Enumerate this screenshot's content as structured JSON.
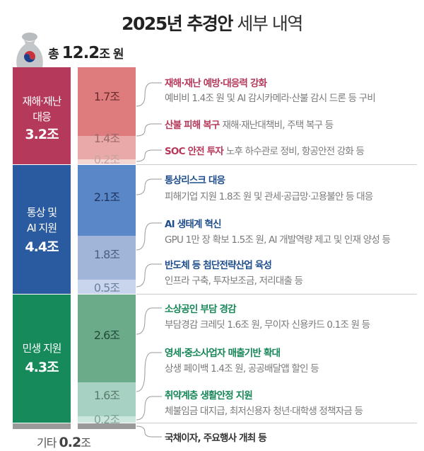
{
  "header": {
    "title_bold": "2025년 추경안",
    "title_rest": "세부 내역",
    "total_prefix": "총",
    "total_value": "12.2",
    "total_suffix": "조 원"
  },
  "colors": {
    "red": "#b5395a",
    "blue": "#2a5aa0",
    "green": "#178a5c",
    "gray": "#9a9a9a"
  },
  "categories": [
    {
      "label_lines": [
        "재해·재난",
        "대응"
      ],
      "total": "3.2조",
      "items": [
        {
          "value": "1.7조",
          "title": "재해·재난 예방·대응력 강화",
          "desc": "예비비 1.4조 원 및 AI 감시카메라·산불 감시 드론 등 구비"
        },
        {
          "value": "1.4조",
          "title": "산불 피해 복구",
          "desc": "재해·재난대책비, 주택 복구 등"
        },
        {
          "value": "0.2조",
          "title": "SOC 안전 투자",
          "desc": "노후 하수관로 정비, 항공안전 강화 등"
        }
      ]
    },
    {
      "label_lines": [
        "통상 및",
        "AI 지원"
      ],
      "total": "4.4조",
      "items": [
        {
          "value": "2.1조",
          "title": "통상리스크 대응",
          "desc": "피해기업 지원 1.8조 원 및 관세·공급망·고용불안 등 대응"
        },
        {
          "value": "1.8조",
          "title": "AI 생태계 혁신",
          "desc": "GPU 1만 장 확보 1.5조 원, AI 개발역량 제고 및 인재 양성 등"
        },
        {
          "value": "0.5조",
          "title": "반도체 등 첨단전략산업 육성",
          "desc": "인프라 구축, 투자보조금, 저리대출 등"
        }
      ]
    },
    {
      "label_lines": [
        "민생 지원"
      ],
      "total": "4.3조",
      "items": [
        {
          "value": "2.6조",
          "title": "소상공인 부담 경감",
          "desc": "부담경감 크레딧 1.6조 원, 무이자 신용카드 0.1조 원 등"
        },
        {
          "value": "1.6조",
          "title": "영세·중소사업자 매출기반 확대",
          "desc": "상생 페이백 1.4조 원, 공공배달앱 할인 등"
        },
        {
          "value": "0.2조",
          "title": "취약계층 생활안정 지원",
          "desc": "체불임금 대지급, 최저신용자 청년·대학생 정책자금 등"
        }
      ]
    }
  ],
  "other": {
    "label": "기타",
    "value": "0.2",
    "unit": "조",
    "desc": "국채이자, 주요행사 개최 등"
  },
  "chart_data": {
    "type": "bar",
    "stacked": true,
    "unit": "조 원",
    "total": 12.2,
    "categories": [
      "재해·재난 대응",
      "통상 및 AI 지원",
      "민생 지원",
      "기타"
    ],
    "values": [
      3.2,
      4.4,
      4.3,
      0.2
    ],
    "breakdown": [
      [
        1.7,
        1.4,
        0.2
      ],
      [
        2.1,
        1.8,
        0.5
      ],
      [
        2.6,
        1.6,
        0.2
      ],
      [
        0.2
      ]
    ]
  }
}
